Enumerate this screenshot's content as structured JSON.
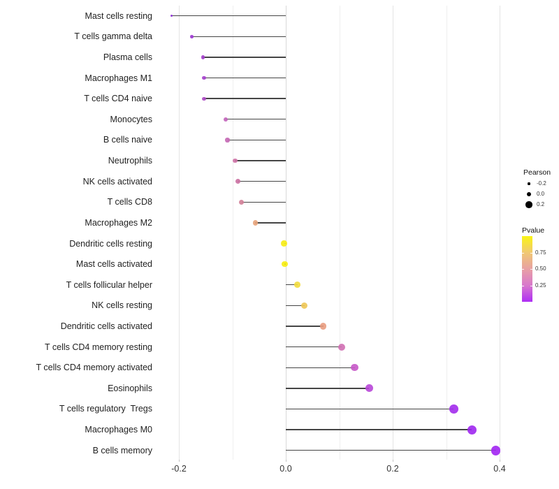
{
  "chart_data": {
    "type": "scatter",
    "subtype": "lollipop",
    "title": "",
    "xlabel": "",
    "ylabel": "",
    "grid": "on",
    "background": "#ffffff",
    "xlim": [
      -0.232,
      0.43
    ],
    "x_ticks": [
      {
        "label": "-0.2",
        "value": -0.2
      },
      {
        "label": "0.0",
        "value": 0.0
      },
      {
        "label": "0.2",
        "value": 0.2
      },
      {
        "label": "0.4",
        "value": 0.4
      }
    ],
    "x_minor_ticks": [
      -0.1,
      0.1,
      0.3
    ],
    "rows": [
      {
        "label": "Mast cells resting",
        "pearson": -0.214,
        "pvalue": 0.05,
        "color": "#8E2BD8"
      },
      {
        "label": "T cells gamma delta",
        "pearson": -0.176,
        "pvalue": 0.1,
        "color": "#9D37D3"
      },
      {
        "label": "Plasma cells",
        "pearson": -0.155,
        "pvalue": 0.12,
        "color": "#A43FCC"
      },
      {
        "label": "Macrophages M1",
        "pearson": -0.153,
        "pvalue": 0.12,
        "color": "#A43FCC"
      },
      {
        "label": "T cells CD4 naive",
        "pearson": -0.153,
        "pvalue": 0.15,
        "color": "#AC48C4"
      },
      {
        "label": "Monocytes",
        "pearson": -0.112,
        "pvalue": 0.3,
        "color": "#C263BA"
      },
      {
        "label": "B cells naive",
        "pearson": -0.109,
        "pvalue": 0.32,
        "color": "#C467B4"
      },
      {
        "label": "Neutrophils",
        "pearson": -0.095,
        "pvalue": 0.4,
        "color": "#CE72A6"
      },
      {
        "label": "NK cells activated",
        "pearson": -0.09,
        "pvalue": 0.38,
        "color": "#CB70A2"
      },
      {
        "label": "T cells CD8",
        "pearson": -0.083,
        "pvalue": 0.45,
        "color": "#D27E97"
      },
      {
        "label": "Macrophages M2",
        "pearson": -0.057,
        "pvalue": 0.62,
        "color": "#E8A47B"
      },
      {
        "label": "Dendritic cells resting",
        "pearson": -0.003,
        "pvalue": 0.95,
        "color": "#F6EC13"
      },
      {
        "label": "Mast cells activated",
        "pearson": -0.002,
        "pvalue": 0.95,
        "color": "#F7ED10"
      },
      {
        "label": "T cells follicular helper",
        "pearson": 0.022,
        "pvalue": 0.85,
        "color": "#F2DC3D"
      },
      {
        "label": "NK cells resting",
        "pearson": 0.035,
        "pvalue": 0.78,
        "color": "#EEC654"
      },
      {
        "label": "Dendritic cells activated",
        "pearson": 0.07,
        "pvalue": 0.62,
        "color": "#E99C80"
      },
      {
        "label": "T cells CD4 memory resting",
        "pearson": 0.105,
        "pvalue": 0.35,
        "color": "#D06FB2"
      },
      {
        "label": "T cells CD4 memory activated",
        "pearson": 0.129,
        "pvalue": 0.25,
        "color": "#C658C8"
      },
      {
        "label": "Eosinophils",
        "pearson": 0.156,
        "pvalue": 0.17,
        "color": "#B846D8"
      },
      {
        "label": "T cells regulatory  Tregs",
        "pearson": 0.314,
        "pvalue": 0.07,
        "color": "#A22BEC"
      },
      {
        "label": "Macrophages M0",
        "pearson": 0.348,
        "pvalue": 0.05,
        "color": "#9F27F0"
      },
      {
        "label": "B cells memory",
        "pearson": 0.393,
        "pvalue": 0.03,
        "color": "#A123F2"
      }
    ],
    "legend": {
      "position": "right",
      "size_legend": {
        "title": "Pearson",
        "dot_color": "#000000",
        "entries": [
          {
            "label": "-0.2",
            "value": -0.2
          },
          {
            "label": "0.0",
            "value": 0.0
          },
          {
            "label": "0.2",
            "value": 0.2
          }
        ]
      },
      "color_legend": {
        "title": "Pvalue",
        "range": [
          0,
          1
        ],
        "ticks": [
          {
            "label": "0.75",
            "value": 0.75
          },
          {
            "label": "0.50",
            "value": 0.5
          },
          {
            "label": "0.25",
            "value": 0.25
          }
        ],
        "gradient_top_to_bottom": [
          "#FAF514",
          "#F0C873",
          "#E8A1A4",
          "#D878CC",
          "#AE2EF4"
        ]
      }
    },
    "colors": {
      "stick": "#454545",
      "grid_major": "#e4e4e4",
      "grid_minor": "#efefef",
      "zero_line": "#d9d9d9"
    }
  }
}
